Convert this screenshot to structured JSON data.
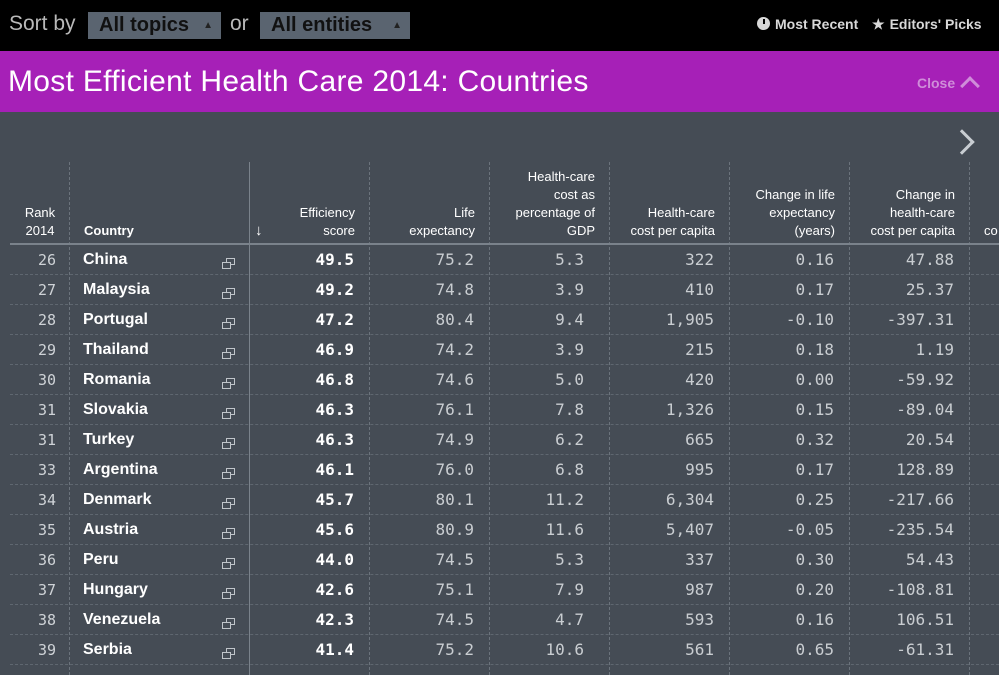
{
  "topbar": {
    "sort_label": "Sort by",
    "topics_select": "All topics",
    "or_label": "or",
    "entities_select": "All entities",
    "most_recent": "Most Recent",
    "editors_picks": "Editors' Picks"
  },
  "titlebar": {
    "title": "Most Efficient Health Care 2014: Countries",
    "close_label": "Close"
  },
  "table": {
    "headers": {
      "rank": [
        "Rank",
        "2014"
      ],
      "country": "Country",
      "sort_arrow": "↓",
      "efficiency": [
        "Efficiency",
        "score"
      ],
      "life": [
        "Life",
        "expectancy"
      ],
      "gdp": [
        "Health-care",
        "cost as",
        "percentage of",
        "GDP"
      ],
      "cost": [
        "Health-care",
        "cost per capita"
      ],
      "chlife": [
        "Change in life",
        "expectancy",
        "(years)"
      ],
      "chcost": [
        "Change in",
        "health-care",
        "cost per capita"
      ],
      "partial": "co"
    },
    "rows": [
      {
        "rank": "26",
        "country": "China",
        "score": "49.5",
        "life": "75.2",
        "gdp": "5.3",
        "cost": "322",
        "chlife": "0.16",
        "chcost": "47.88"
      },
      {
        "rank": "27",
        "country": "Malaysia",
        "score": "49.2",
        "life": "74.8",
        "gdp": "3.9",
        "cost": "410",
        "chlife": "0.17",
        "chcost": "25.37"
      },
      {
        "rank": "28",
        "country": "Portugal",
        "score": "47.2",
        "life": "80.4",
        "gdp": "9.4",
        "cost": "1,905",
        "chlife": "-0.10",
        "chcost": "-397.31"
      },
      {
        "rank": "29",
        "country": "Thailand",
        "score": "46.9",
        "life": "74.2",
        "gdp": "3.9",
        "cost": "215",
        "chlife": "0.18",
        "chcost": "1.19"
      },
      {
        "rank": "30",
        "country": "Romania",
        "score": "46.8",
        "life": "74.6",
        "gdp": "5.0",
        "cost": "420",
        "chlife": "0.00",
        "chcost": "-59.92"
      },
      {
        "rank": "31",
        "country": "Slovakia",
        "score": "46.3",
        "life": "76.1",
        "gdp": "7.8",
        "cost": "1,326",
        "chlife": "0.15",
        "chcost": "-89.04"
      },
      {
        "rank": "31",
        "country": "Turkey",
        "score": "46.3",
        "life": "74.9",
        "gdp": "6.2",
        "cost": "665",
        "chlife": "0.32",
        "chcost": "20.54"
      },
      {
        "rank": "33",
        "country": "Argentina",
        "score": "46.1",
        "life": "76.0",
        "gdp": "6.8",
        "cost": "995",
        "chlife": "0.17",
        "chcost": "128.89"
      },
      {
        "rank": "34",
        "country": "Denmark",
        "score": "45.7",
        "life": "80.1",
        "gdp": "11.2",
        "cost": "6,304",
        "chlife": "0.25",
        "chcost": "-217.66"
      },
      {
        "rank": "35",
        "country": "Austria",
        "score": "45.6",
        "life": "80.9",
        "gdp": "11.6",
        "cost": "5,407",
        "chlife": "-0.05",
        "chcost": "-235.54"
      },
      {
        "rank": "36",
        "country": "Peru",
        "score": "44.0",
        "life": "74.5",
        "gdp": "5.3",
        "cost": "337",
        "chlife": "0.30",
        "chcost": "54.43"
      },
      {
        "rank": "37",
        "country": "Hungary",
        "score": "42.6",
        "life": "75.1",
        "gdp": "7.9",
        "cost": "987",
        "chlife": "0.20",
        "chcost": "-108.81"
      },
      {
        "rank": "38",
        "country": "Venezuela",
        "score": "42.3",
        "life": "74.5",
        "gdp": "4.7",
        "cost": "593",
        "chlife": "0.16",
        "chcost": "106.51"
      },
      {
        "rank": "39",
        "country": "Serbia",
        "score": "41.4",
        "life": "75.2",
        "gdp": "10.6",
        "cost": "561",
        "chlife": "0.65",
        "chcost": "-61.31"
      }
    ]
  },
  "colors": {
    "background": "#454c55",
    "topbar": "#000000",
    "titlebar": "#a620b7"
  }
}
